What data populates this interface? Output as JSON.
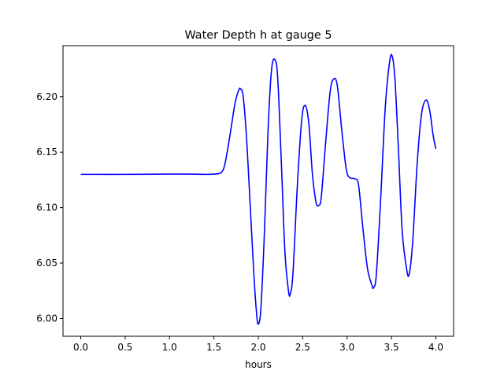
{
  "chart_data": {
    "type": "line",
    "title": "Water Depth h at gauge 5",
    "xlabel": "hours",
    "ylabel": "",
    "xlim": [
      -0.2,
      4.2
    ],
    "ylim": [
      5.984,
      6.246
    ],
    "grid": false,
    "x_ticks": [
      {
        "value": 0.0,
        "label": "0.0"
      },
      {
        "value": 0.5,
        "label": "0.5"
      },
      {
        "value": 1.0,
        "label": "1.0"
      },
      {
        "value": 1.5,
        "label": "1.5"
      },
      {
        "value": 2.0,
        "label": "2.0"
      },
      {
        "value": 2.5,
        "label": "2.5"
      },
      {
        "value": 3.0,
        "label": "3.0"
      },
      {
        "value": 3.5,
        "label": "3.5"
      },
      {
        "value": 4.0,
        "label": "4.0"
      }
    ],
    "y_ticks": [
      {
        "value": 6.0,
        "label": "6.00"
      },
      {
        "value": 6.05,
        "label": "6.05"
      },
      {
        "value": 6.1,
        "label": "6.10"
      },
      {
        "value": 6.15,
        "label": "6.15"
      },
      {
        "value": 6.2,
        "label": "6.20"
      }
    ],
    "series": [
      {
        "color": "#0000ff",
        "points": [
          [
            0.0,
            6.13
          ],
          [
            0.5,
            6.13
          ],
          [
            1.0,
            6.1302
          ],
          [
            1.2,
            6.1302
          ],
          [
            1.4,
            6.13
          ],
          [
            1.5,
            6.1302
          ],
          [
            1.58,
            6.1315
          ],
          [
            1.62,
            6.138
          ],
          [
            1.66,
            6.155
          ],
          [
            1.7,
            6.175
          ],
          [
            1.74,
            6.195
          ],
          [
            1.78,
            6.206
          ],
          [
            1.8,
            6.207
          ],
          [
            1.83,
            6.2
          ],
          [
            1.87,
            6.16
          ],
          [
            1.91,
            6.1
          ],
          [
            1.95,
            6.04
          ],
          [
            1.98,
            6.005
          ],
          [
            2.0,
            5.995
          ],
          [
            2.03,
            6.01
          ],
          [
            2.07,
            6.08
          ],
          [
            2.11,
            6.17
          ],
          [
            2.15,
            6.225
          ],
          [
            2.19,
            6.233
          ],
          [
            2.22,
            6.215
          ],
          [
            2.26,
            6.14
          ],
          [
            2.3,
            6.06
          ],
          [
            2.34,
            6.025
          ],
          [
            2.36,
            6.022
          ],
          [
            2.39,
            6.04
          ],
          [
            2.44,
            6.12
          ],
          [
            2.49,
            6.18
          ],
          [
            2.53,
            6.192
          ],
          [
            2.57,
            6.175
          ],
          [
            2.61,
            6.13
          ],
          [
            2.65,
            6.105
          ],
          [
            2.68,
            6.102
          ],
          [
            2.71,
            6.11
          ],
          [
            2.76,
            6.16
          ],
          [
            2.81,
            6.205
          ],
          [
            2.85,
            6.216
          ],
          [
            2.89,
            6.21
          ],
          [
            2.94,
            6.17
          ],
          [
            2.99,
            6.135
          ],
          [
            3.03,
            6.127
          ],
          [
            3.09,
            6.126
          ],
          [
            3.13,
            6.12
          ],
          [
            3.18,
            6.08
          ],
          [
            3.23,
            6.045
          ],
          [
            3.28,
            6.03
          ],
          [
            3.3,
            6.028
          ],
          [
            3.33,
            6.04
          ],
          [
            3.38,
            6.11
          ],
          [
            3.43,
            6.19
          ],
          [
            3.48,
            6.232
          ],
          [
            3.51,
            6.236
          ],
          [
            3.54,
            6.215
          ],
          [
            3.58,
            6.15
          ],
          [
            3.62,
            6.08
          ],
          [
            3.67,
            6.045
          ],
          [
            3.7,
            6.04
          ],
          [
            3.74,
            6.07
          ],
          [
            3.79,
            6.14
          ],
          [
            3.84,
            6.185
          ],
          [
            3.89,
            6.197
          ],
          [
            3.93,
            6.188
          ],
          [
            3.97,
            6.165
          ],
          [
            4.0,
            6.153
          ]
        ]
      }
    ]
  }
}
